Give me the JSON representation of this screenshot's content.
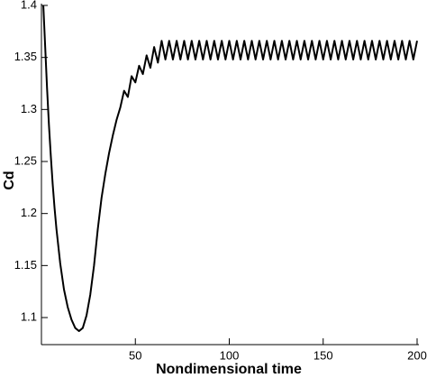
{
  "chart_data": {
    "type": "line",
    "xlabel": "Nondimensional time",
    "ylabel": "Cd",
    "color": "#000000",
    "xlim": [
      0,
      200
    ],
    "ylim": [
      1.074,
      1.4
    ],
    "xticks": [
      50,
      100,
      150,
      200
    ],
    "yticks": [
      1.1,
      1.15,
      1.2,
      1.25,
      1.3,
      1.35,
      1.4
    ],
    "x": [
      1,
      2,
      3,
      4,
      5,
      6,
      7,
      8,
      10,
      12,
      14,
      16,
      18,
      20,
      22,
      24,
      26,
      28,
      30,
      32,
      34,
      36,
      38,
      40,
      42,
      44,
      46,
      48,
      50,
      52,
      54,
      56,
      58,
      60,
      62,
      64,
      66,
      68,
      70,
      72,
      74,
      76,
      78,
      80,
      82,
      84,
      86,
      88,
      90,
      92,
      94,
      96,
      98,
      100,
      102,
      104,
      106,
      108,
      110,
      112,
      114,
      116,
      118,
      120,
      122,
      124,
      126,
      128,
      130,
      132,
      134,
      136,
      138,
      140,
      142,
      144,
      146,
      148,
      150,
      152,
      154,
      156,
      158,
      160,
      162,
      164,
      166,
      168,
      170,
      172,
      174,
      176,
      178,
      180,
      182,
      184,
      186,
      188,
      190,
      192,
      194,
      196,
      198,
      200
    ],
    "values": [
      1.4,
      1.36,
      1.32,
      1.285,
      1.255,
      1.228,
      1.205,
      1.185,
      1.152,
      1.127,
      1.11,
      1.098,
      1.09,
      1.087,
      1.09,
      1.102,
      1.122,
      1.15,
      1.185,
      1.215,
      1.238,
      1.258,
      1.275,
      1.29,
      1.302,
      1.318,
      1.312,
      1.332,
      1.326,
      1.342,
      1.334,
      1.352,
      1.34,
      1.36,
      1.345,
      1.366,
      1.348,
      1.366,
      1.348,
      1.366,
      1.348,
      1.366,
      1.348,
      1.366,
      1.348,
      1.366,
      1.348,
      1.366,
      1.348,
      1.366,
      1.348,
      1.366,
      1.348,
      1.366,
      1.348,
      1.366,
      1.348,
      1.366,
      1.348,
      1.366,
      1.348,
      1.366,
      1.348,
      1.366,
      1.348,
      1.366,
      1.348,
      1.366,
      1.348,
      1.366,
      1.348,
      1.366,
      1.348,
      1.366,
      1.348,
      1.366,
      1.348,
      1.366,
      1.348,
      1.366,
      1.348,
      1.366,
      1.348,
      1.366,
      1.348,
      1.366,
      1.348,
      1.366,
      1.348,
      1.366,
      1.348,
      1.366,
      1.348,
      1.366,
      1.348,
      1.366,
      1.348,
      1.366,
      1.348,
      1.366,
      1.348,
      1.366,
      1.348,
      1.366
    ]
  }
}
